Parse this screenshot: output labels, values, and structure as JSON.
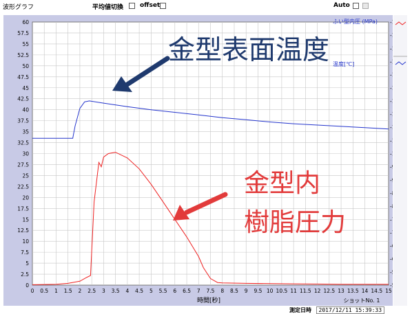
{
  "header": {
    "graph_title": "波形グラフ",
    "avg_toggle_label": "平均値切換",
    "offset_label": "offset",
    "auto_label": "Auto"
  },
  "footer": {
    "measure_label": "測定日時",
    "timestamp": "2017/12/11  15:39:33"
  },
  "colors": {
    "mold_surface_temp": "#2233cc",
    "resin_pressure": "#ee2020",
    "plot_bg": "#ffffff",
    "frame_bg": "#c8cae6",
    "arrow_blue": "#1f3a6e",
    "arrow_red": "#e23b3b"
  },
  "chart_data": {
    "type": "line",
    "xlabel": "時間[秒]",
    "shot_label": "ショットNo. 1",
    "x_range": [
      0,
      15
    ],
    "y_left_range": [
      0,
      60
    ],
    "y_right_range": [
      50,
      150
    ],
    "grid": true,
    "x_ticks": [
      "0",
      "0.5",
      "1",
      "1.5",
      "2",
      "2.5",
      "3",
      "3.5",
      "4",
      "4.5",
      "5",
      "5.5",
      "6",
      "6.5",
      "7",
      "7.5",
      "8",
      "8.5",
      "9",
      "9.5",
      "10",
      "10.5",
      "11",
      "11.5",
      "12",
      "12.5",
      "13",
      "13.5",
      "14",
      "14.5",
      "15"
    ],
    "y_left_ticks": [
      "0",
      "2.5",
      "5",
      "7.5",
      "10",
      "12.5",
      "15",
      "17.5",
      "20",
      "22.5",
      "25",
      "27.5",
      "30",
      "32.5",
      "35",
      "37.5",
      "40",
      "42.5",
      "45",
      "47.5",
      "50",
      "52.5",
      "55",
      "57.5",
      "60"
    ],
    "y_right_ticks": [
      "-50",
      "-55",
      "-60",
      "-65",
      "-70",
      "-75",
      "-80",
      "-85",
      "-90",
      "-95",
      "-100",
      "-105",
      "-110",
      "-115",
      "-120",
      "-125",
      "-130",
      "-135",
      "-140",
      "-145",
      "-150"
    ],
    "right_legend_1": "ふい型内圧 (MPa)",
    "right_legend_2": "温度[℃]",
    "series": [
      {
        "name": "金型表面温度",
        "axis": "left",
        "x": [
          0,
          1.2,
          1.7,
          1.8,
          2.0,
          2.2,
          2.4,
          3.0,
          4.0,
          5.0,
          6.0,
          7.0,
          8.0,
          9.0,
          10.0,
          11.0,
          12.0,
          13.0,
          14.0,
          15.0
        ],
        "values": [
          33.5,
          33.5,
          33.5,
          36.3,
          40.3,
          41.8,
          42.0,
          41.5,
          40.7,
          40.0,
          39.4,
          38.8,
          38.2,
          37.7,
          37.2,
          36.8,
          36.5,
          36.2,
          35.9,
          35.6
        ]
      },
      {
        "name": "金型内樹脂圧力",
        "axis": "left",
        "x": [
          0,
          1.0,
          1.5,
          2.0,
          2.3,
          2.45,
          2.6,
          2.8,
          2.9,
          3.0,
          3.2,
          3.5,
          4.0,
          4.5,
          5.0,
          5.5,
          6.0,
          6.5,
          7.0,
          7.2,
          7.5,
          7.8,
          8.0,
          9.0,
          10.0,
          11.0,
          12.0,
          13.0,
          14.0,
          15.0
        ],
        "values": [
          0.1,
          0.2,
          0.4,
          0.9,
          1.8,
          2.2,
          19.0,
          28.0,
          27.0,
          29.2,
          30.0,
          30.3,
          29.0,
          26.5,
          23.0,
          19.0,
          15.0,
          11.0,
          6.5,
          4.0,
          1.5,
          0.6,
          0.5,
          0.4,
          0.35,
          0.3,
          0.25,
          0.2,
          0.2,
          0.2
        ]
      }
    ],
    "annotations": [
      {
        "lines": [
          "金型表面温度"
        ],
        "color_key": "blue"
      },
      {
        "lines": [
          "金型内",
          "樹脂圧力"
        ],
        "color_key": "red"
      }
    ]
  }
}
